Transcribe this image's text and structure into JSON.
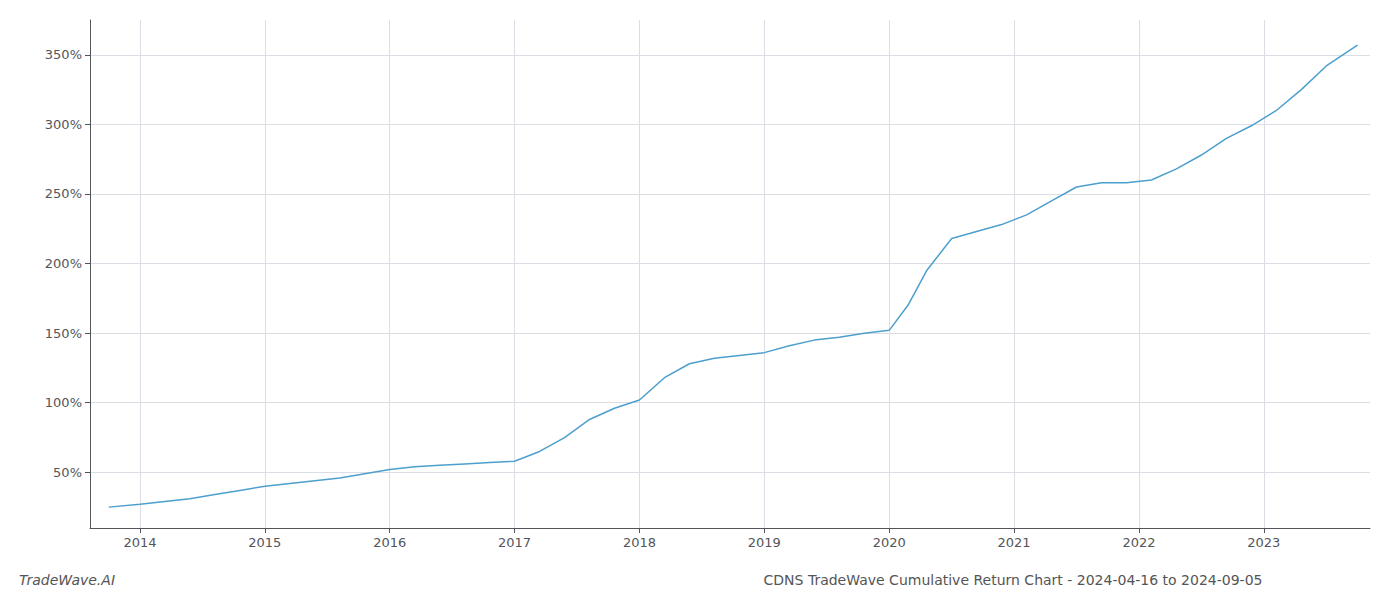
{
  "chart_data": {
    "type": "line",
    "title": "CDNS TradeWave Cumulative Return Chart - 2024-04-16 to 2024-09-05",
    "annotations": [
      "TradeWave.AI"
    ],
    "color": "#4d9fcd",
    "grid": true,
    "x": [
      2013.75,
      2014.0,
      2014.2,
      2014.4,
      2014.6,
      2014.8,
      2015.0,
      2015.2,
      2015.4,
      2015.6,
      2015.8,
      2016.0,
      2016.2,
      2016.4,
      2016.6,
      2016.8,
      2017.0,
      2017.2,
      2017.4,
      2017.6,
      2017.8,
      2018.0,
      2018.2,
      2018.4,
      2018.6,
      2018.8,
      2019.0,
      2019.2,
      2019.4,
      2019.6,
      2019.8,
      2020.0,
      2020.15,
      2020.3,
      2020.5,
      2020.7,
      2020.9,
      2021.1,
      2021.3,
      2021.5,
      2021.7,
      2021.9,
      2022.1,
      2022.3,
      2022.5,
      2022.7,
      2022.9,
      2023.1,
      2023.3,
      2023.5,
      2023.75
    ],
    "values": [
      25,
      27,
      29,
      31,
      34,
      37,
      40,
      42,
      44,
      46,
      49,
      52,
      54,
      55,
      56,
      57,
      58,
      65,
      75,
      88,
      96,
      102,
      118,
      128,
      132,
      134,
      136,
      141,
      145,
      147,
      150,
      152,
      170,
      195,
      218,
      223,
      228,
      235,
      245,
      255,
      258,
      258,
      260,
      268,
      278,
      290,
      299,
      310,
      325,
      342,
      357
    ],
    "xlim": [
      2013.6,
      2023.85
    ],
    "xticks": [
      2014,
      2015,
      2016,
      2017,
      2018,
      2019,
      2020,
      2021,
      2022,
      2023
    ],
    "ylim": [
      10,
      375
    ],
    "yticks": [
      {
        "value": 50,
        "label": "50%"
      },
      {
        "value": 100,
        "label": "100%"
      },
      {
        "value": 150,
        "label": "150%"
      },
      {
        "value": 200,
        "label": "200%"
      },
      {
        "value": 250,
        "label": "250%"
      },
      {
        "value": 300,
        "label": "300%"
      },
      {
        "value": 350,
        "label": "350%"
      }
    ]
  }
}
